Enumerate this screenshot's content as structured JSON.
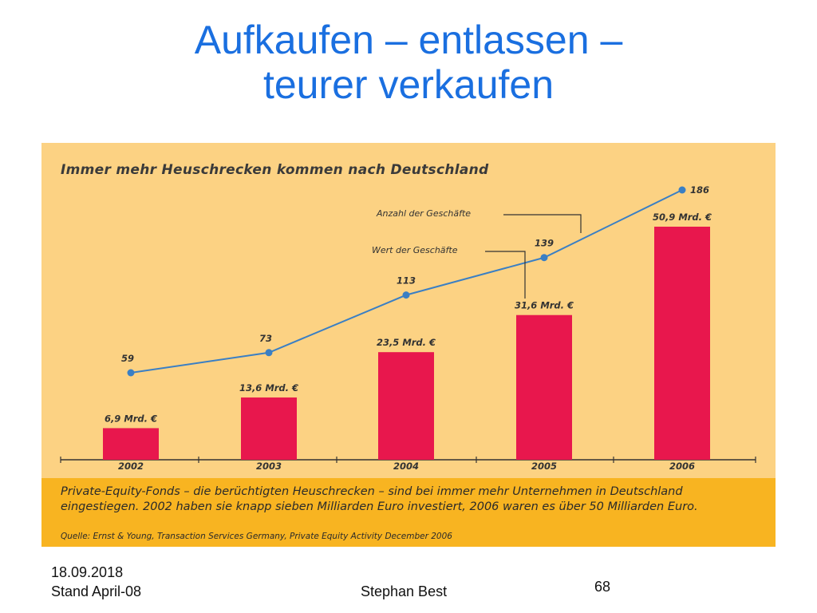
{
  "slide": {
    "title_line1": "Aufkaufen – entlassen –",
    "title_line2": "teurer verkaufen"
  },
  "figure": {
    "heading": "Immer mehr Heuschrecken kommen nach Deutschland",
    "caption": "Private-Equity-Fonds – die berüchtigten Heuschrecken – sind bei immer mehr Unternehmen in Deutschland eingestiegen. 2002 haben sie knapp sieben Milliarden Euro investiert, 2006 waren es über 50 Milliarden Euro.",
    "source": "Quelle: Ernst & Young, Transaction Services Germany, Private Equity Activity December 2006"
  },
  "chart_data": {
    "type": "bar",
    "categories": [
      "2002",
      "2003",
      "2004",
      "2005",
      "2006"
    ],
    "series": [
      {
        "name": "Wert der Geschäfte",
        "type": "bar",
        "values": [
          6.9,
          13.6,
          23.5,
          31.6,
          50.9
        ],
        "labels": [
          "6,9 Mrd. €",
          "13,6 Mrd. €",
          "23,5 Mrd. €",
          "31,6 Mrd. €",
          "50,9 Mrd. €"
        ],
        "color": "#e8174d"
      },
      {
        "name": "Anzahl der Geschäfte",
        "type": "line",
        "values": [
          59,
          73,
          113,
          139,
          186
        ],
        "labels": [
          "59",
          "73",
          "113",
          "139",
          "186"
        ],
        "color": "#3a7fc4"
      }
    ],
    "title": "Immer mehr Heuschrecken kommen nach Deutschland",
    "xlabel": "",
    "ylabel": "",
    "grid": false,
    "legend": "annotations"
  },
  "footer": {
    "date": "18.09.2018",
    "stand": "Stand April-08",
    "author": "Stephan Best",
    "page": "68"
  },
  "colors": {
    "title": "#1a6fe0",
    "panel": "#fcd283",
    "caption_band": "#f8b421"
  }
}
